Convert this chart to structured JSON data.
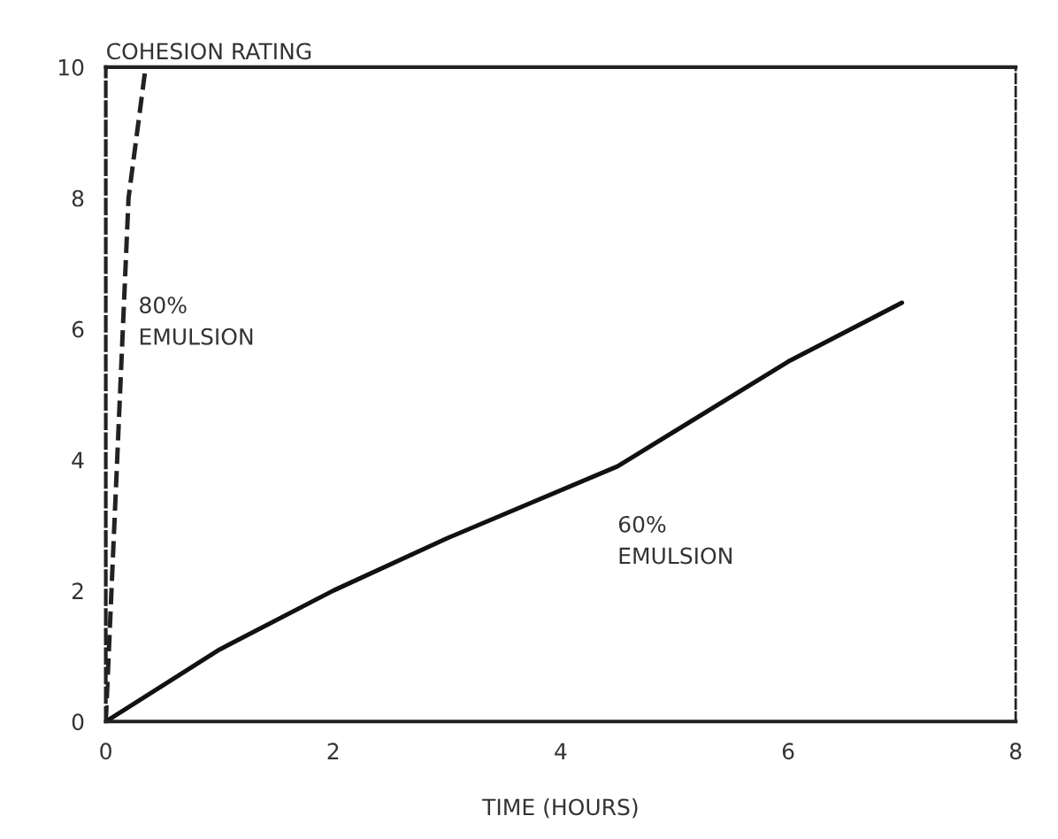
{
  "chart_data": {
    "type": "line",
    "xlabel": "TIME (HOURS)",
    "ylabel": "COHESION RATING",
    "xlim": [
      0,
      8
    ],
    "xticks": [
      0,
      2,
      4,
      6,
      8
    ],
    "ylim": [
      0,
      10
    ],
    "yticks": [
      0,
      2,
      4,
      6,
      8,
      10
    ],
    "grid": false,
    "legend": false,
    "marker": "none",
    "series": [
      {
        "name": "80%\nEMULSION",
        "color": "#222222",
        "line_style": "dashed",
        "x": [
          0,
          0.2,
          0.35
        ],
        "values": [
          0,
          8,
          10
        ]
      },
      {
        "name": "60%\nEMULSION",
        "color": "#111111",
        "line_style": "solid",
        "x": [
          0,
          1,
          2,
          3,
          4.5,
          6,
          7
        ],
        "values": [
          0,
          1.1,
          2.0,
          2.8,
          3.9,
          5.5,
          6.4
        ]
      }
    ]
  }
}
